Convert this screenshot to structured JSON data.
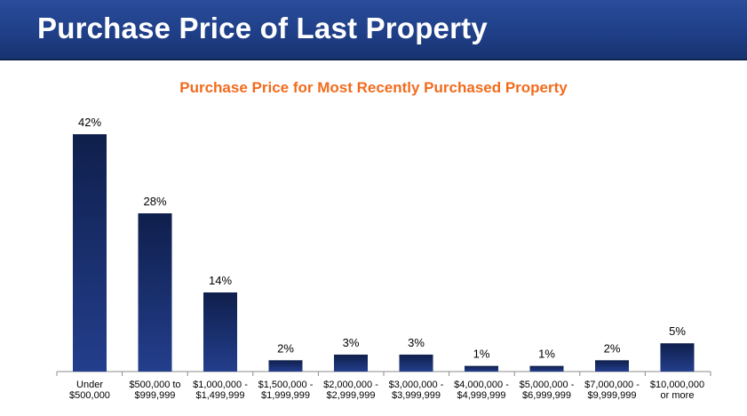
{
  "header": {
    "title": "Purchase Price of Last Property"
  },
  "colors": {
    "header_bg": "#1f3f88",
    "bar": "#1a2f6b",
    "chart_title": "#f26b1d"
  },
  "chart_data": {
    "type": "bar",
    "title": "Purchase Price for Most Recently Purchased Property",
    "xlabel": "",
    "ylabel": "",
    "ylim": [
      0,
      42
    ],
    "grid": false,
    "categories": [
      [
        "Under",
        "$500,000"
      ],
      [
        "$500,000 to",
        "$999,999"
      ],
      [
        "$1,000,000 -",
        "$1,499,999"
      ],
      [
        "$1,500,000 -",
        "$1,999,999"
      ],
      [
        "$2,000,000 -",
        "$2,999,999"
      ],
      [
        "$3,000,000 -",
        "$3,999,999"
      ],
      [
        "$4,000,000 -",
        "$4,999,999"
      ],
      [
        "$5,000,000 -",
        "$6,999,999"
      ],
      [
        "$7,000,000 -",
        "$9,999,999"
      ],
      [
        "$10,000,000",
        "or more"
      ]
    ],
    "values": [
      42,
      28,
      14,
      2,
      3,
      3,
      1,
      1,
      2,
      5
    ],
    "value_labels": [
      "42%",
      "28%",
      "14%",
      "2%",
      "3%",
      "3%",
      "1%",
      "1%",
      "2%",
      "5%"
    ]
  }
}
